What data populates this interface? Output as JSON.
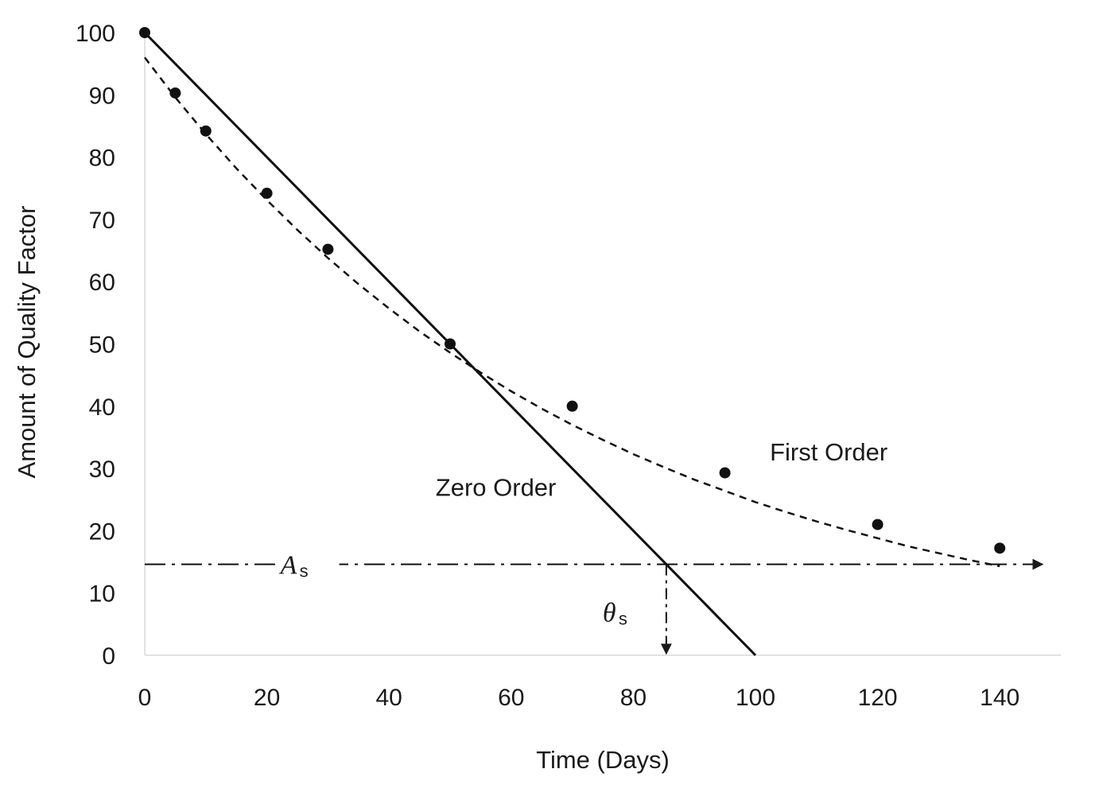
{
  "chart_data": {
    "type": "line",
    "title": "",
    "xlabel": "Time (Days)",
    "ylabel": "Amount of Quality Factor",
    "xlim": [
      0,
      148
    ],
    "ylim": [
      0,
      100
    ],
    "x_ticks": [
      0,
      20,
      40,
      60,
      80,
      100,
      120,
      140
    ],
    "y_ticks": [
      0,
      10,
      20,
      30,
      40,
      50,
      60,
      70,
      80,
      90,
      100
    ],
    "grid": false,
    "legend": "none",
    "series": [
      {
        "style": "solid",
        "points": [
          [
            0,
            100
          ],
          [
            100,
            0
          ]
        ]
      },
      {
        "style": "dashed",
        "curve": [
          [
            0,
            96
          ],
          [
            5,
            89.6
          ],
          [
            10,
            83.7
          ],
          [
            15,
            78.2
          ],
          [
            20,
            73.1
          ],
          [
            25,
            68.3
          ],
          [
            30,
            63.8
          ],
          [
            35,
            59.6
          ],
          [
            40,
            55.7
          ],
          [
            45,
            52.0
          ],
          [
            50,
            48.6
          ],
          [
            55,
            45.4
          ],
          [
            60,
            42.4
          ],
          [
            65,
            39.6
          ],
          [
            70,
            37.0
          ],
          [
            75,
            34.6
          ],
          [
            80,
            32.3
          ],
          [
            85,
            30.2
          ],
          [
            90,
            28.2
          ],
          [
            95,
            26.4
          ],
          [
            100,
            24.6
          ],
          [
            105,
            23.0
          ],
          [
            110,
            21.5
          ],
          [
            115,
            20.1
          ],
          [
            120,
            18.8
          ],
          [
            125,
            17.5
          ],
          [
            130,
            16.4
          ],
          [
            135,
            15.3
          ],
          [
            140,
            14.3
          ]
        ]
      },
      {
        "style": "markers",
        "points": [
          [
            0,
            100
          ],
          [
            5,
            90.3
          ],
          [
            10,
            84.2
          ],
          [
            20,
            74.2
          ],
          [
            30,
            65.2
          ],
          [
            50,
            50.0
          ],
          [
            70,
            40.0
          ],
          [
            95,
            29.3
          ],
          [
            120,
            21.0
          ],
          [
            140,
            17.2
          ]
        ]
      }
    ],
    "threshold": {
      "y": 14.6,
      "x_end": 147,
      "label_main": "A",
      "label_sub": "s",
      "label_x": 23
    },
    "intersection": {
      "x": 85.4,
      "label_main": "θ",
      "label_sub": "s"
    },
    "annotations": [
      {
        "name": "zero-order-label",
        "text": "Zero Order",
        "x": 57.5,
        "y": 27
      },
      {
        "name": "first-order-label",
        "text": "First Order",
        "x": 112,
        "y": 32.7
      }
    ]
  }
}
